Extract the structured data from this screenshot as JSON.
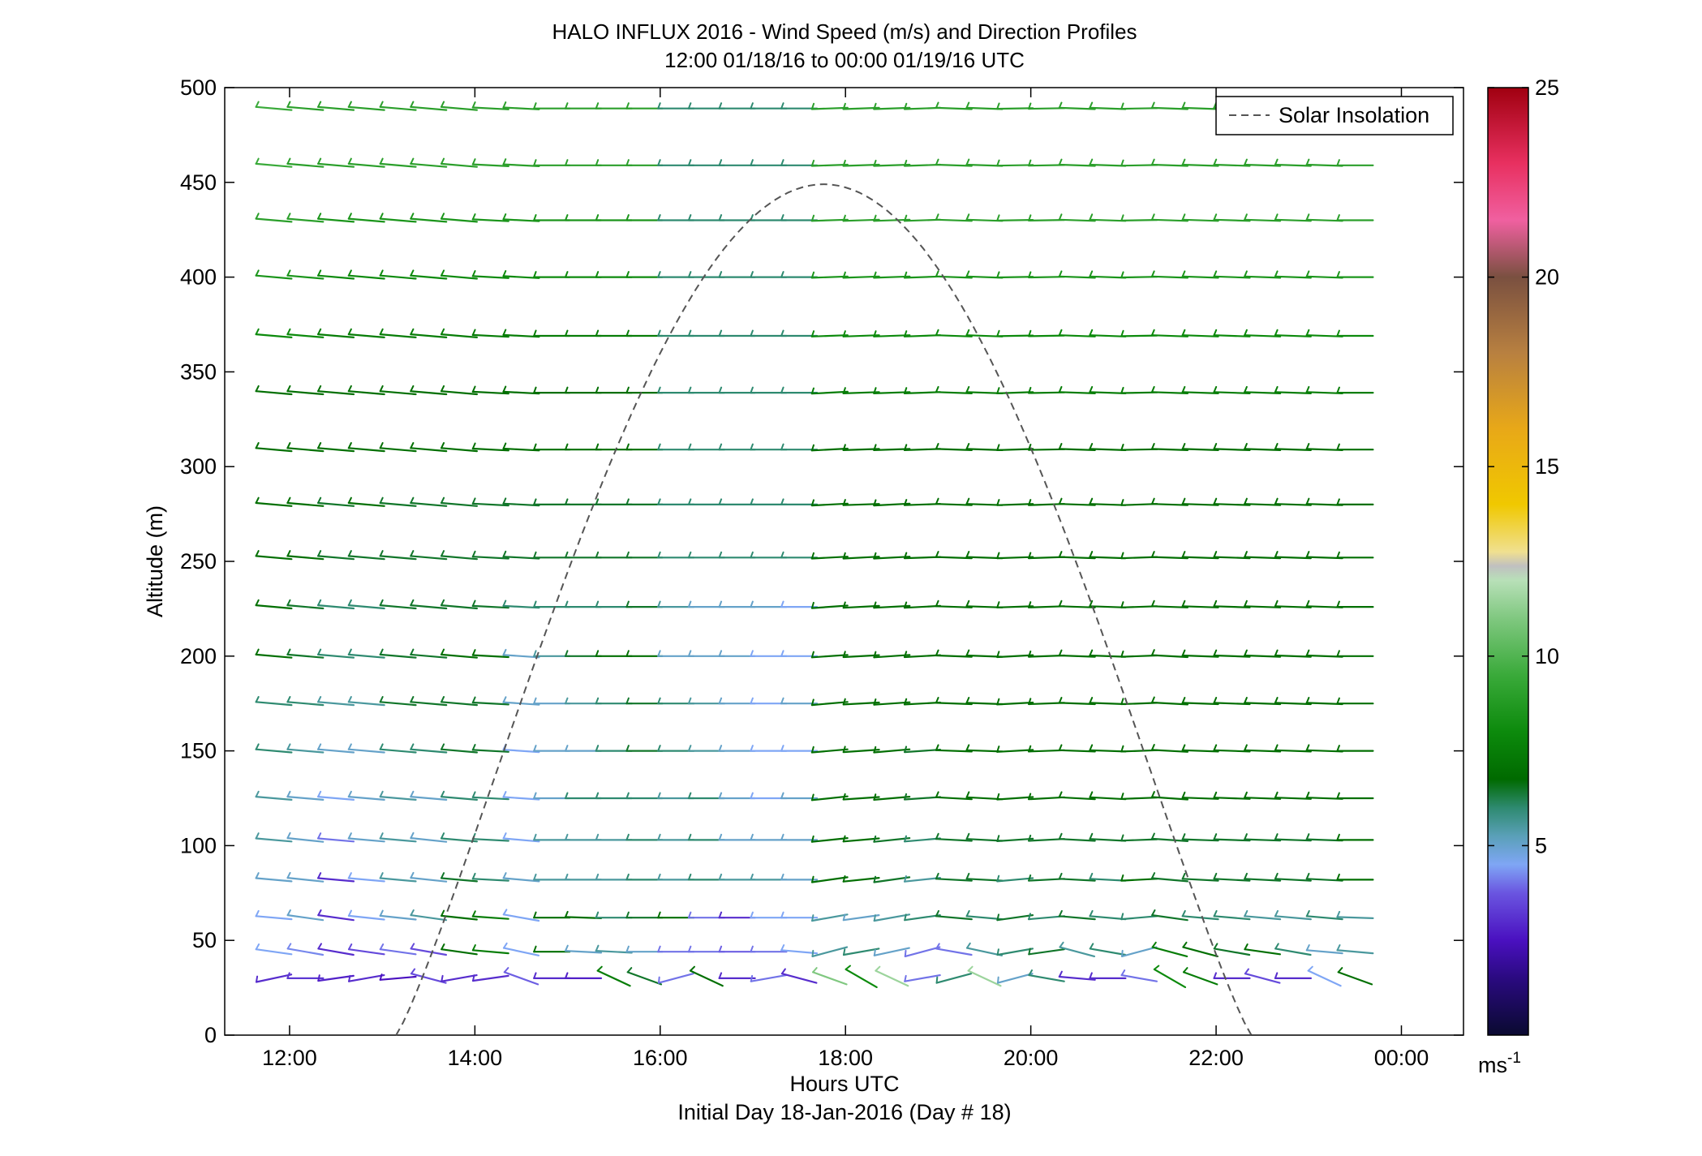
{
  "chart_data": {
    "type": "wind-barb-profile",
    "title": "HALO INFLUX 2016 - Wind Speed (m/s) and Direction Profiles",
    "subtitle": "12:00 01/18/16 to 00:00 01/19/16  UTC",
    "xlabel": "Hours UTC",
    "xlabel2": "Initial Day 18-Jan-2016 (Day # 18)",
    "ylabel": "Altitude (m)",
    "xlim_hours": [
      11.3,
      24.67
    ],
    "ylim": [
      0,
      500
    ],
    "x_ticks": [
      {
        "value": 12,
        "label": "12:00"
      },
      {
        "value": 14,
        "label": "14:00"
      },
      {
        "value": 16,
        "label": "16:00"
      },
      {
        "value": 18,
        "label": "18:00"
      },
      {
        "value": 20,
        "label": "20:00"
      },
      {
        "value": 22,
        "label": "22:00"
      },
      {
        "value": 24,
        "label": "00:00"
      }
    ],
    "y_ticks": [
      0,
      50,
      100,
      150,
      200,
      250,
      300,
      350,
      400,
      450,
      500
    ],
    "colorbar": {
      "range": [
        0,
        25
      ],
      "ticks": [
        5,
        10,
        15,
        20,
        25
      ],
      "unit": "ms",
      "unit_exponent": "-1"
    },
    "legend": {
      "label": "Solar Insolation",
      "style": "dashed",
      "color": "#555555",
      "position": "top-right"
    },
    "solar_insolation": {
      "start_hour": 13.15,
      "end_hour": 22.38,
      "peak_hour": 17.75,
      "peak_altitude_equiv": 449
    },
    "profile_altitudes": [
      30,
      44,
      62,
      82,
      103,
      125,
      150,
      175,
      200,
      226,
      252,
      280,
      309,
      339,
      369,
      400,
      430,
      459,
      489
    ],
    "times_hours": [
      11.83,
      12.17,
      12.5,
      12.83,
      13.17,
      13.5,
      13.83,
      14.17,
      14.5,
      14.83,
      15.17,
      15.5,
      15.83,
      16.17,
      16.5,
      16.83,
      17.17,
      17.5,
      17.83,
      18.17,
      18.5,
      18.83,
      19.17,
      19.5,
      19.83,
      20.17,
      20.5,
      20.83,
      21.17,
      21.5,
      21.83,
      22.17,
      22.5,
      22.83,
      23.17,
      23.5
    ],
    "speed_ms": [
      [
        3.0,
        3.2,
        2.8,
        3.0,
        2.5,
        3.5,
        3.0,
        3.0,
        3.8,
        3.0,
        2.8,
        7.5,
        6.5,
        4.0,
        7.0,
        3.0,
        4.0,
        3.0,
        11.0,
        8.0,
        11.5,
        4.0,
        6.0,
        11.5,
        5.0,
        6.0,
        3.0,
        3.0,
        4.0,
        8.0,
        7.5,
        3.0,
        3.5,
        3.0,
        4.5,
        7.0
      ],
      [
        4.5,
        4.2,
        3.0,
        3.5,
        4.0,
        3.5,
        7.0,
        7.5,
        4.5,
        7.0,
        5.0,
        5.5,
        5.0,
        4.0,
        4.0,
        3.8,
        4.0,
        4.5,
        5.5,
        6.0,
        5.0,
        4.0,
        4.0,
        5.5,
        6.0,
        6.5,
        5.5,
        6.0,
        5.0,
        7.5,
        7.0,
        6.5,
        7.0,
        6.0,
        5.0,
        5.5
      ],
      [
        4.5,
        5.0,
        3.0,
        4.5,
        5.0,
        5.5,
        7.0,
        7.5,
        4.5,
        7.0,
        7.0,
        6.0,
        6.5,
        7.0,
        4.0,
        3.0,
        4.5,
        4.5,
        5.5,
        5.0,
        5.5,
        6.0,
        6.5,
        6.0,
        6.5,
        6.0,
        6.5,
        6.0,
        6.0,
        6.5,
        6.0,
        6.0,
        5.5,
        5.5,
        6.0,
        5.5
      ],
      [
        5.0,
        5.0,
        3.0,
        4.5,
        5.5,
        5.0,
        6.5,
        6.0,
        5.0,
        5.5,
        5.5,
        5.5,
        6.0,
        5.5,
        6.0,
        5.5,
        5.5,
        5.0,
        7.0,
        7.0,
        6.5,
        5.5,
        6.5,
        6.5,
        6.0,
        6.5,
        6.5,
        6.0,
        7.0,
        6.5,
        6.5,
        6.5,
        6.5,
        6.5,
        6.5,
        7.0
      ],
      [
        5.5,
        5.0,
        4.0,
        5.0,
        5.5,
        5.0,
        6.0,
        6.0,
        4.5,
        5.5,
        5.5,
        5.5,
        6.0,
        5.5,
        6.0,
        5.0,
        5.0,
        5.0,
        7.0,
        7.0,
        6.5,
        6.0,
        6.5,
        6.5,
        6.5,
        6.5,
        6.5,
        6.5,
        6.5,
        6.5,
        6.5,
        6.5,
        6.5,
        6.5,
        6.5,
        7.0
      ],
      [
        5.5,
        5.0,
        4.5,
        5.0,
        5.5,
        5.0,
        6.0,
        6.0,
        4.5,
        5.0,
        6.0,
        6.0,
        6.0,
        5.5,
        6.0,
        5.0,
        4.5,
        5.0,
        7.0,
        7.0,
        7.0,
        6.5,
        7.0,
        7.0,
        7.0,
        7.0,
        7.0,
        7.0,
        7.0,
        7.0,
        7.0,
        7.0,
        7.0,
        7.0,
        7.0,
        7.0
      ],
      [
        6.0,
        5.5,
        5.0,
        5.0,
        6.0,
        6.0,
        6.5,
        6.5,
        4.5,
        5.0,
        5.0,
        6.0,
        6.5,
        6.0,
        5.5,
        5.0,
        4.5,
        4.5,
        7.0,
        7.0,
        7.0,
        6.5,
        7.0,
        7.0,
        7.0,
        7.0,
        7.0,
        7.0,
        7.0,
        7.0,
        7.0,
        7.0,
        7.0,
        7.0,
        7.0,
        7.0
      ],
      [
        6.0,
        6.0,
        5.5,
        5.5,
        6.5,
        6.5,
        6.5,
        6.5,
        5.0,
        5.0,
        5.5,
        6.0,
        6.5,
        6.0,
        5.5,
        5.0,
        4.5,
        5.0,
        7.0,
        7.0,
        7.0,
        7.0,
        7.0,
        7.0,
        7.0,
        7.0,
        7.0,
        7.0,
        7.0,
        7.0,
        7.0,
        7.0,
        7.0,
        7.0,
        7.0,
        7.0
      ],
      [
        7.0,
        6.5,
        6.0,
        6.0,
        6.5,
        6.5,
        7.0,
        7.0,
        5.0,
        5.5,
        6.5,
        7.0,
        7.0,
        5.0,
        5.0,
        5.0,
        4.5,
        4.5,
        7.0,
        7.0,
        7.0,
        7.0,
        7.0,
        7.0,
        7.0,
        7.0,
        7.0,
        7.0,
        7.0,
        7.0,
        7.0,
        7.0,
        7.0,
        7.0,
        7.0,
        7.0
      ],
      [
        7.0,
        6.5,
        6.0,
        6.0,
        6.5,
        6.5,
        6.5,
        6.5,
        6.0,
        6.0,
        6.0,
        6.0,
        6.5,
        5.5,
        5.0,
        5.0,
        5.0,
        4.5,
        7.0,
        7.0,
        7.0,
        7.0,
        7.0,
        7.0,
        7.0,
        7.0,
        7.0,
        7.0,
        7.0,
        7.0,
        7.0,
        7.0,
        7.0,
        7.0,
        7.0,
        7.0
      ],
      [
        7.0,
        7.0,
        6.5,
        6.5,
        6.5,
        6.5,
        6.5,
        6.5,
        6.5,
        6.5,
        6.5,
        6.5,
        6.5,
        6.0,
        6.0,
        6.0,
        6.0,
        6.0,
        7.0,
        7.0,
        7.0,
        7.0,
        7.0,
        7.0,
        7.0,
        7.0,
        7.0,
        7.0,
        7.0,
        7.0,
        7.0,
        7.0,
        7.0,
        7.0,
        7.0,
        7.0
      ],
      [
        7.0,
        7.0,
        6.5,
        7.0,
        6.5,
        6.5,
        6.5,
        6.5,
        6.5,
        6.5,
        6.5,
        6.5,
        6.5,
        6.0,
        6.0,
        6.0,
        6.0,
        6.0,
        7.0,
        7.0,
        7.0,
        7.0,
        7.0,
        7.0,
        7.0,
        7.0,
        7.0,
        7.0,
        7.0,
        7.0,
        7.0,
        7.0,
        7.0,
        7.0,
        7.0,
        7.0
      ],
      [
        7.0,
        7.0,
        7.0,
        7.0,
        7.0,
        7.0,
        7.0,
        7.0,
        7.0,
        7.0,
        7.0,
        7.0,
        7.0,
        6.0,
        6.0,
        6.0,
        6.0,
        6.0,
        7.0,
        7.0,
        7.0,
        7.0,
        7.0,
        7.0,
        7.0,
        7.0,
        7.0,
        7.0,
        7.0,
        7.0,
        7.0,
        7.0,
        7.0,
        7.0,
        7.0,
        7.0
      ],
      [
        7.0,
        7.0,
        7.0,
        7.0,
        7.0,
        7.0,
        7.0,
        7.0,
        7.0,
        7.0,
        7.0,
        7.0,
        7.0,
        6.0,
        6.0,
        6.0,
        6.0,
        6.0,
        7.5,
        7.5,
        7.5,
        7.5,
        7.5,
        7.5,
        7.5,
        7.5,
        7.5,
        7.5,
        7.5,
        7.5,
        7.5,
        7.5,
        7.5,
        7.5,
        7.5,
        7.5
      ],
      [
        8.0,
        8.0,
        7.5,
        7.5,
        7.5,
        7.5,
        7.5,
        7.5,
        7.5,
        7.5,
        7.5,
        7.5,
        7.5,
        6.0,
        6.0,
        6.0,
        6.0,
        6.0,
        8.0,
        8.0,
        8.0,
        8.0,
        8.0,
        8.0,
        8.0,
        8.0,
        8.0,
        8.0,
        8.0,
        8.0,
        8.0,
        8.0,
        8.0,
        8.0,
        8.0,
        8.0
      ],
      [
        8.5,
        8.5,
        8.0,
        8.0,
        8.0,
        8.0,
        8.0,
        8.0,
        8.0,
        8.0,
        8.0,
        8.0,
        8.0,
        6.0,
        6.0,
        6.0,
        6.0,
        6.0,
        8.5,
        8.5,
        8.5,
        8.5,
        8.5,
        8.5,
        8.5,
        8.5,
        8.5,
        8.5,
        8.5,
        8.5,
        8.5,
        8.5,
        8.5,
        8.5,
        8.5,
        8.5
      ],
      [
        9.0,
        9.0,
        8.5,
        8.5,
        8.5,
        8.5,
        8.5,
        8.5,
        8.5,
        8.5,
        8.5,
        8.5,
        8.5,
        6.0,
        6.0,
        6.0,
        6.0,
        6.0,
        9.0,
        9.0,
        9.0,
        9.0,
        9.0,
        9.0,
        9.0,
        9.0,
        9.0,
        9.0,
        9.0,
        9.0,
        9.0,
        9.0,
        9.0,
        9.0,
        9.0,
        9.0
      ],
      [
        9.5,
        9.0,
        9.0,
        9.0,
        9.0,
        9.0,
        9.0,
        9.0,
        9.0,
        9.0,
        9.0,
        9.0,
        9.0,
        6.0,
        6.0,
        6.0,
        6.0,
        6.0,
        9.0,
        9.0,
        9.0,
        9.0,
        9.0,
        9.0,
        9.0,
        9.0,
        9.0,
        9.0,
        9.0,
        9.0,
        9.0,
        9.0,
        9.0,
        9.0,
        9.0,
        9.0
      ],
      [
        9.5,
        9.0,
        9.0,
        9.0,
        9.0,
        9.0,
        9.0,
        9.0,
        9.0,
        9.0,
        9.0,
        9.0,
        9.0,
        6.0,
        6.0,
        6.0,
        6.0,
        6.0,
        9.0,
        9.0,
        9.0,
        9.0,
        9.0,
        9.0,
        9.0,
        9.0,
        9.0,
        9.0,
        9.0,
        9.0,
        9.0,
        9.0,
        9.0,
        9.0,
        9.0,
        9.0
      ]
    ],
    "tilt_deg": [
      [
        -12,
        0,
        -8,
        -10,
        -5,
        15,
        -10,
        -8,
        20,
        0,
        0,
        25,
        20,
        -15,
        25,
        0,
        -10,
        15,
        20,
        30,
        25,
        -10,
        -15,
        25,
        -15,
        10,
        5,
        0,
        10,
        30,
        20,
        0,
        15,
        0,
        25,
        20
      ],
      [
        8,
        10,
        10,
        8,
        8,
        10,
        8,
        5,
        12,
        0,
        3,
        3,
        0,
        0,
        0,
        0,
        0,
        5,
        -15,
        -10,
        -12,
        -15,
        10,
        12,
        -10,
        -8,
        15,
        10,
        -15,
        15,
        15,
        10,
        8,
        10,
        5,
        5
      ],
      [
        5,
        8,
        8,
        6,
        6,
        8,
        6,
        4,
        10,
        0,
        2,
        0,
        0,
        0,
        0,
        0,
        0,
        0,
        -10,
        -8,
        -10,
        -8,
        5,
        5,
        -8,
        -5,
        5,
        5,
        -5,
        8,
        5,
        5,
        5,
        5,
        5,
        2
      ],
      [
        5,
        6,
        5,
        5,
        5,
        6,
        5,
        3,
        5,
        0,
        0,
        0,
        0,
        0,
        0,
        0,
        0,
        0,
        -8,
        -6,
        -8,
        -6,
        3,
        3,
        -5,
        -3,
        3,
        3,
        -3,
        5,
        3,
        3,
        3,
        3,
        3,
        0
      ],
      [
        5,
        6,
        5,
        5,
        5,
        6,
        5,
        3,
        5,
        0,
        0,
        0,
        0,
        0,
        0,
        0,
        0,
        0,
        -6,
        -5,
        -6,
        -5,
        3,
        3,
        -4,
        -3,
        3,
        3,
        -2,
        4,
        2,
        2,
        2,
        2,
        2,
        0
      ],
      [
        5,
        5,
        5,
        5,
        5,
        5,
        5,
        3,
        4,
        0,
        0,
        0,
        0,
        0,
        0,
        0,
        0,
        0,
        -6,
        -4,
        -5,
        -4,
        3,
        3,
        -4,
        -3,
        3,
        3,
        -2,
        4,
        2,
        2,
        2,
        2,
        2,
        0
      ],
      [
        5,
        5,
        5,
        5,
        5,
        5,
        5,
        3,
        4,
        0,
        0,
        0,
        0,
        0,
        0,
        0,
        0,
        0,
        -5,
        -4,
        -5,
        -4,
        2,
        2,
        -3,
        -2,
        2,
        2,
        -2,
        3,
        2,
        2,
        2,
        2,
        2,
        0
      ],
      [
        5,
        5,
        5,
        5,
        5,
        5,
        5,
        3,
        4,
        0,
        0,
        0,
        0,
        0,
        0,
        0,
        0,
        0,
        -5,
        -3,
        -4,
        -3,
        2,
        2,
        -3,
        -2,
        2,
        2,
        -2,
        3,
        2,
        2,
        2,
        2,
        2,
        0
      ],
      [
        5,
        5,
        5,
        5,
        5,
        5,
        5,
        3,
        4,
        0,
        0,
        0,
        0,
        0,
        0,
        0,
        0,
        0,
        -4,
        -3,
        -4,
        -3,
        2,
        2,
        -3,
        -2,
        2,
        2,
        -2,
        3,
        2,
        2,
        2,
        2,
        2,
        0
      ],
      [
        5,
        5,
        5,
        5,
        5,
        5,
        5,
        3,
        3,
        0,
        0,
        0,
        0,
        0,
        0,
        0,
        0,
        0,
        -4,
        -3,
        -3,
        -3,
        2,
        2,
        -2,
        -2,
        2,
        2,
        -2,
        2,
        2,
        2,
        2,
        2,
        2,
        0
      ],
      [
        5,
        5,
        5,
        5,
        5,
        5,
        5,
        3,
        3,
        0,
        0,
        0,
        0,
        0,
        0,
        0,
        0,
        0,
        -3,
        -3,
        -3,
        -2,
        2,
        2,
        -2,
        -2,
        2,
        2,
        -2,
        2,
        2,
        2,
        2,
        2,
        2,
        0
      ],
      [
        5,
        5,
        5,
        5,
        5,
        5,
        5,
        3,
        3,
        0,
        0,
        0,
        0,
        0,
        0,
        0,
        0,
        0,
        -3,
        -2,
        -3,
        -2,
        2,
        2,
        -2,
        -2,
        2,
        2,
        -2,
        2,
        2,
        2,
        2,
        2,
        2,
        0
      ],
      [
        5,
        5,
        5,
        5,
        5,
        5,
        5,
        3,
        3,
        0,
        0,
        0,
        0,
        0,
        0,
        0,
        0,
        0,
        -3,
        -2,
        -2,
        -2,
        2,
        2,
        -2,
        -1,
        2,
        2,
        -1,
        2,
        2,
        2,
        2,
        2,
        2,
        0
      ],
      [
        5,
        5,
        5,
        5,
        5,
        5,
        5,
        3,
        3,
        0,
        0,
        0,
        0,
        0,
        0,
        0,
        0,
        0,
        -3,
        -2,
        -2,
        -2,
        2,
        2,
        -2,
        -1,
        2,
        2,
        -1,
        2,
        2,
        2,
        2,
        2,
        2,
        0
      ],
      [
        5,
        5,
        5,
        5,
        5,
        5,
        5,
        3,
        3,
        0,
        0,
        0,
        0,
        0,
        0,
        0,
        0,
        0,
        -2,
        -2,
        -2,
        -2,
        2,
        2,
        -1,
        -1,
        2,
        2,
        -1,
        2,
        2,
        2,
        2,
        2,
        2,
        0
      ],
      [
        5,
        5,
        5,
        5,
        5,
        5,
        5,
        3,
        3,
        0,
        0,
        0,
        0,
        0,
        0,
        0,
        0,
        0,
        -2,
        -2,
        -2,
        -2,
        2,
        2,
        -1,
        -1,
        2,
        2,
        -1,
        2,
        2,
        2,
        2,
        2,
        2,
        0
      ],
      [
        5,
        5,
        5,
        5,
        5,
        5,
        5,
        3,
        3,
        0,
        0,
        0,
        0,
        0,
        0,
        0,
        0,
        0,
        -2,
        -2,
        -2,
        -2,
        2,
        2,
        -1,
        -1,
        2,
        2,
        -1,
        2,
        2,
        2,
        2,
        2,
        2,
        0
      ],
      [
        5,
        5,
        5,
        5,
        5,
        5,
        5,
        3,
        3,
        0,
        0,
        0,
        0,
        0,
        0,
        0,
        0,
        0,
        -2,
        -2,
        -2,
        -2,
        2,
        2,
        -1,
        -1,
        2,
        2,
        -1,
        2,
        2,
        2,
        2,
        2,
        2,
        0
      ],
      [
        5,
        5,
        5,
        5,
        5,
        5,
        5,
        3,
        3,
        0,
        0,
        0,
        0,
        0,
        0,
        0,
        0,
        0,
        -2,
        -2,
        -2,
        -2,
        2,
        2,
        -1,
        -1,
        2,
        2,
        -1,
        2,
        2,
        2,
        2,
        2,
        2,
        0
      ]
    ]
  }
}
